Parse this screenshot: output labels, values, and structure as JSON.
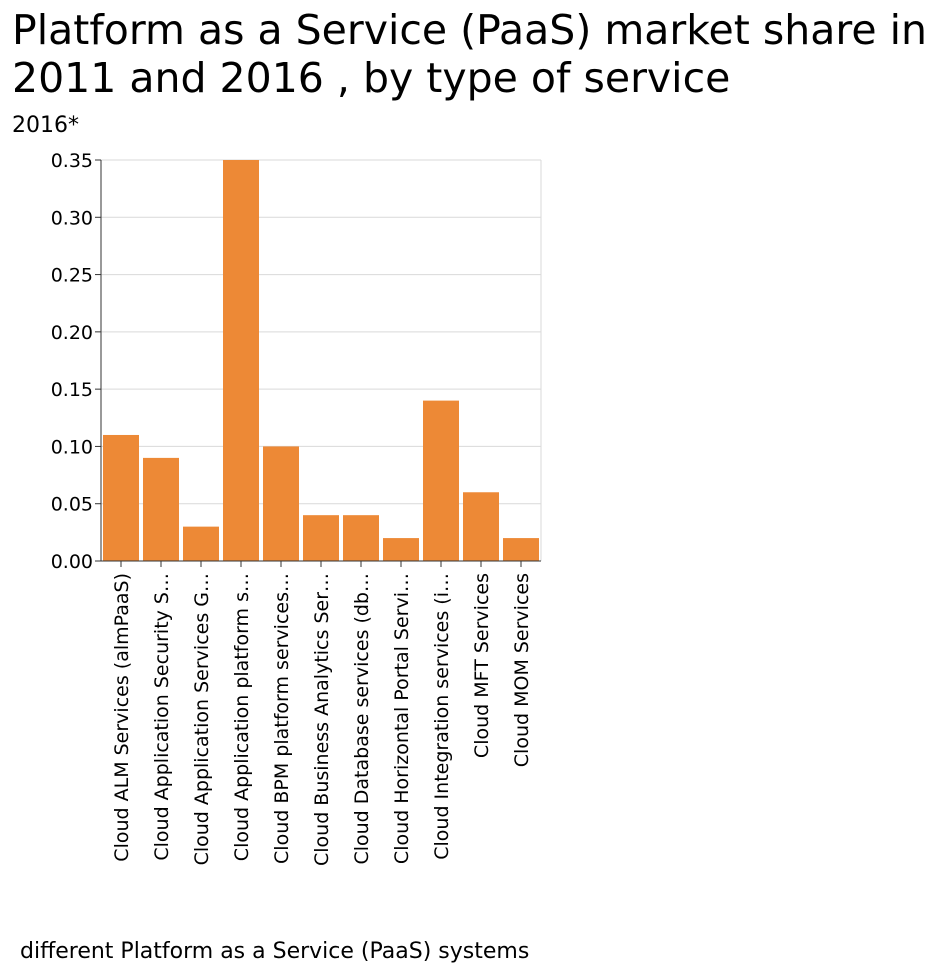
{
  "chart_data": {
    "type": "bar",
    "title": "Platform as a Service (PaaS) market share in 2011 and 2016 , by type of service",
    "ylabel": "2016*",
    "xlabel": "different Platform as a Service (PaaS) systems",
    "ylim": [
      0,
      0.35
    ],
    "yticks": [
      "0.00",
      "0.05",
      "0.10",
      "0.15",
      "0.20",
      "0.25",
      "0.30",
      "0.35"
    ],
    "ytick_values": [
      0,
      0.05,
      0.1,
      0.15,
      0.2,
      0.25,
      0.3,
      0.35
    ],
    "categories": [
      "Cloud ALM Services (almPaaS)",
      "Cloud Application Security S…",
      "Cloud Application Services G…",
      "Cloud Application platform s…",
      "Cloud BPM platform services…",
      "Cloud Business Analytics Ser…",
      "Cloud Database services (db…",
      "Cloud Horizontal Portal Servi…",
      "Cloud Integration services (i…",
      "Cloud MFT Services",
      "Cloud MOM Services"
    ],
    "values": [
      0.11,
      0.09,
      0.03,
      0.35,
      0.1,
      0.04,
      0.04,
      0.02,
      0.14,
      0.06,
      0.02
    ],
    "bar_color": "#ed8936",
    "grid": true,
    "grid_color": "#d9d9d9"
  }
}
